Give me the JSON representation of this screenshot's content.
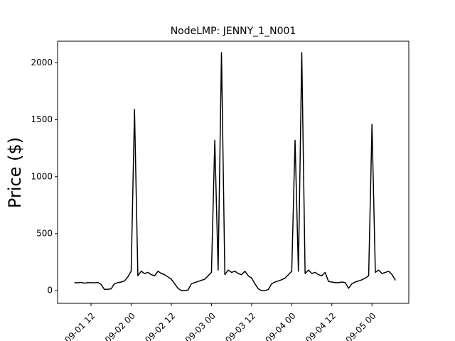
{
  "chart_data": {
    "type": "line",
    "title": "NodeLMP: JENNY_1_N001",
    "y_label": "Price ($)",
    "x": [
      "09-01 07",
      "09-01 08",
      "09-01 09",
      "09-01 10",
      "09-01 11",
      "09-01 12",
      "09-01 13",
      "09-01 14",
      "09-01 15",
      "09-01 16",
      "09-01 17",
      "09-01 18",
      "09-01 19",
      "09-01 20",
      "09-01 21",
      "09-01 22",
      "09-01 23",
      "09-02 00",
      "09-02 01",
      "09-02 02",
      "09-02 03",
      "09-02 04",
      "09-02 05",
      "09-02 06",
      "09-02 07",
      "09-02 08",
      "09-02 09",
      "09-02 10",
      "09-02 11",
      "09-02 12",
      "09-02 13",
      "09-02 14",
      "09-02 15",
      "09-02 16",
      "09-02 17",
      "09-02 18",
      "09-02 19",
      "09-02 20",
      "09-02 21",
      "09-02 22",
      "09-02 23",
      "09-03 00",
      "09-03 01",
      "09-03 02",
      "09-03 03",
      "09-03 04",
      "09-03 05",
      "09-03 06",
      "09-03 07",
      "09-03 08",
      "09-03 09",
      "09-03 10",
      "09-03 11",
      "09-03 12",
      "09-03 13",
      "09-03 14",
      "09-03 15",
      "09-03 16",
      "09-03 17",
      "09-03 18",
      "09-03 19",
      "09-03 20",
      "09-03 21",
      "09-03 22",
      "09-03 23",
      "09-04 00",
      "09-04 01",
      "09-04 02",
      "09-04 03",
      "09-04 04",
      "09-04 05",
      "09-04 06",
      "09-04 07",
      "09-04 08",
      "09-04 09",
      "09-04 10",
      "09-04 11",
      "09-04 12",
      "09-04 13",
      "09-04 14",
      "09-04 15",
      "09-04 16",
      "09-04 17",
      "09-04 18",
      "09-04 19",
      "09-04 20",
      "09-04 21",
      "09-04 22",
      "09-04 23",
      "09-05 00",
      "09-05 01",
      "09-05 02",
      "09-05 03",
      "09-05 04",
      "09-05 05",
      "09-05 06",
      "09-05 07"
    ],
    "series": [
      {
        "name": "JENNY_1_N001",
        "color": "#000000",
        "values": [
          70,
          68,
          72,
          65,
          70,
          70,
          68,
          72,
          55,
          10,
          12,
          15,
          60,
          70,
          75,
          85,
          120,
          170,
          1590,
          130,
          170,
          150,
          160,
          140,
          130,
          170,
          150,
          140,
          120,
          100,
          60,
          20,
          0,
          0,
          5,
          60,
          70,
          80,
          90,
          100,
          130,
          160,
          1320,
          180,
          2090,
          140,
          180,
          160,
          170,
          150,
          140,
          170,
          130,
          110,
          60,
          15,
          0,
          0,
          10,
          60,
          75,
          85,
          95,
          110,
          140,
          170,
          1320,
          170,
          2090,
          150,
          180,
          150,
          160,
          140,
          130,
          160,
          80,
          75,
          70,
          70,
          75,
          70,
          20,
          60,
          75,
          85,
          95,
          110,
          130,
          1460,
          160,
          180,
          150,
          160,
          170,
          140,
          90
        ]
      }
    ],
    "xlim": [
      "09-01 02",
      "09-05 11"
    ],
    "xticks": [
      "09-01 12",
      "09-02 00",
      "09-02 12",
      "09-03 00",
      "09-03 12",
      "09-04 00",
      "09-04 12",
      "09-05 00"
    ],
    "ylim": [
      -112,
      2190
    ],
    "yticks": [
      0,
      500,
      1000,
      1500,
      2000
    ]
  }
}
